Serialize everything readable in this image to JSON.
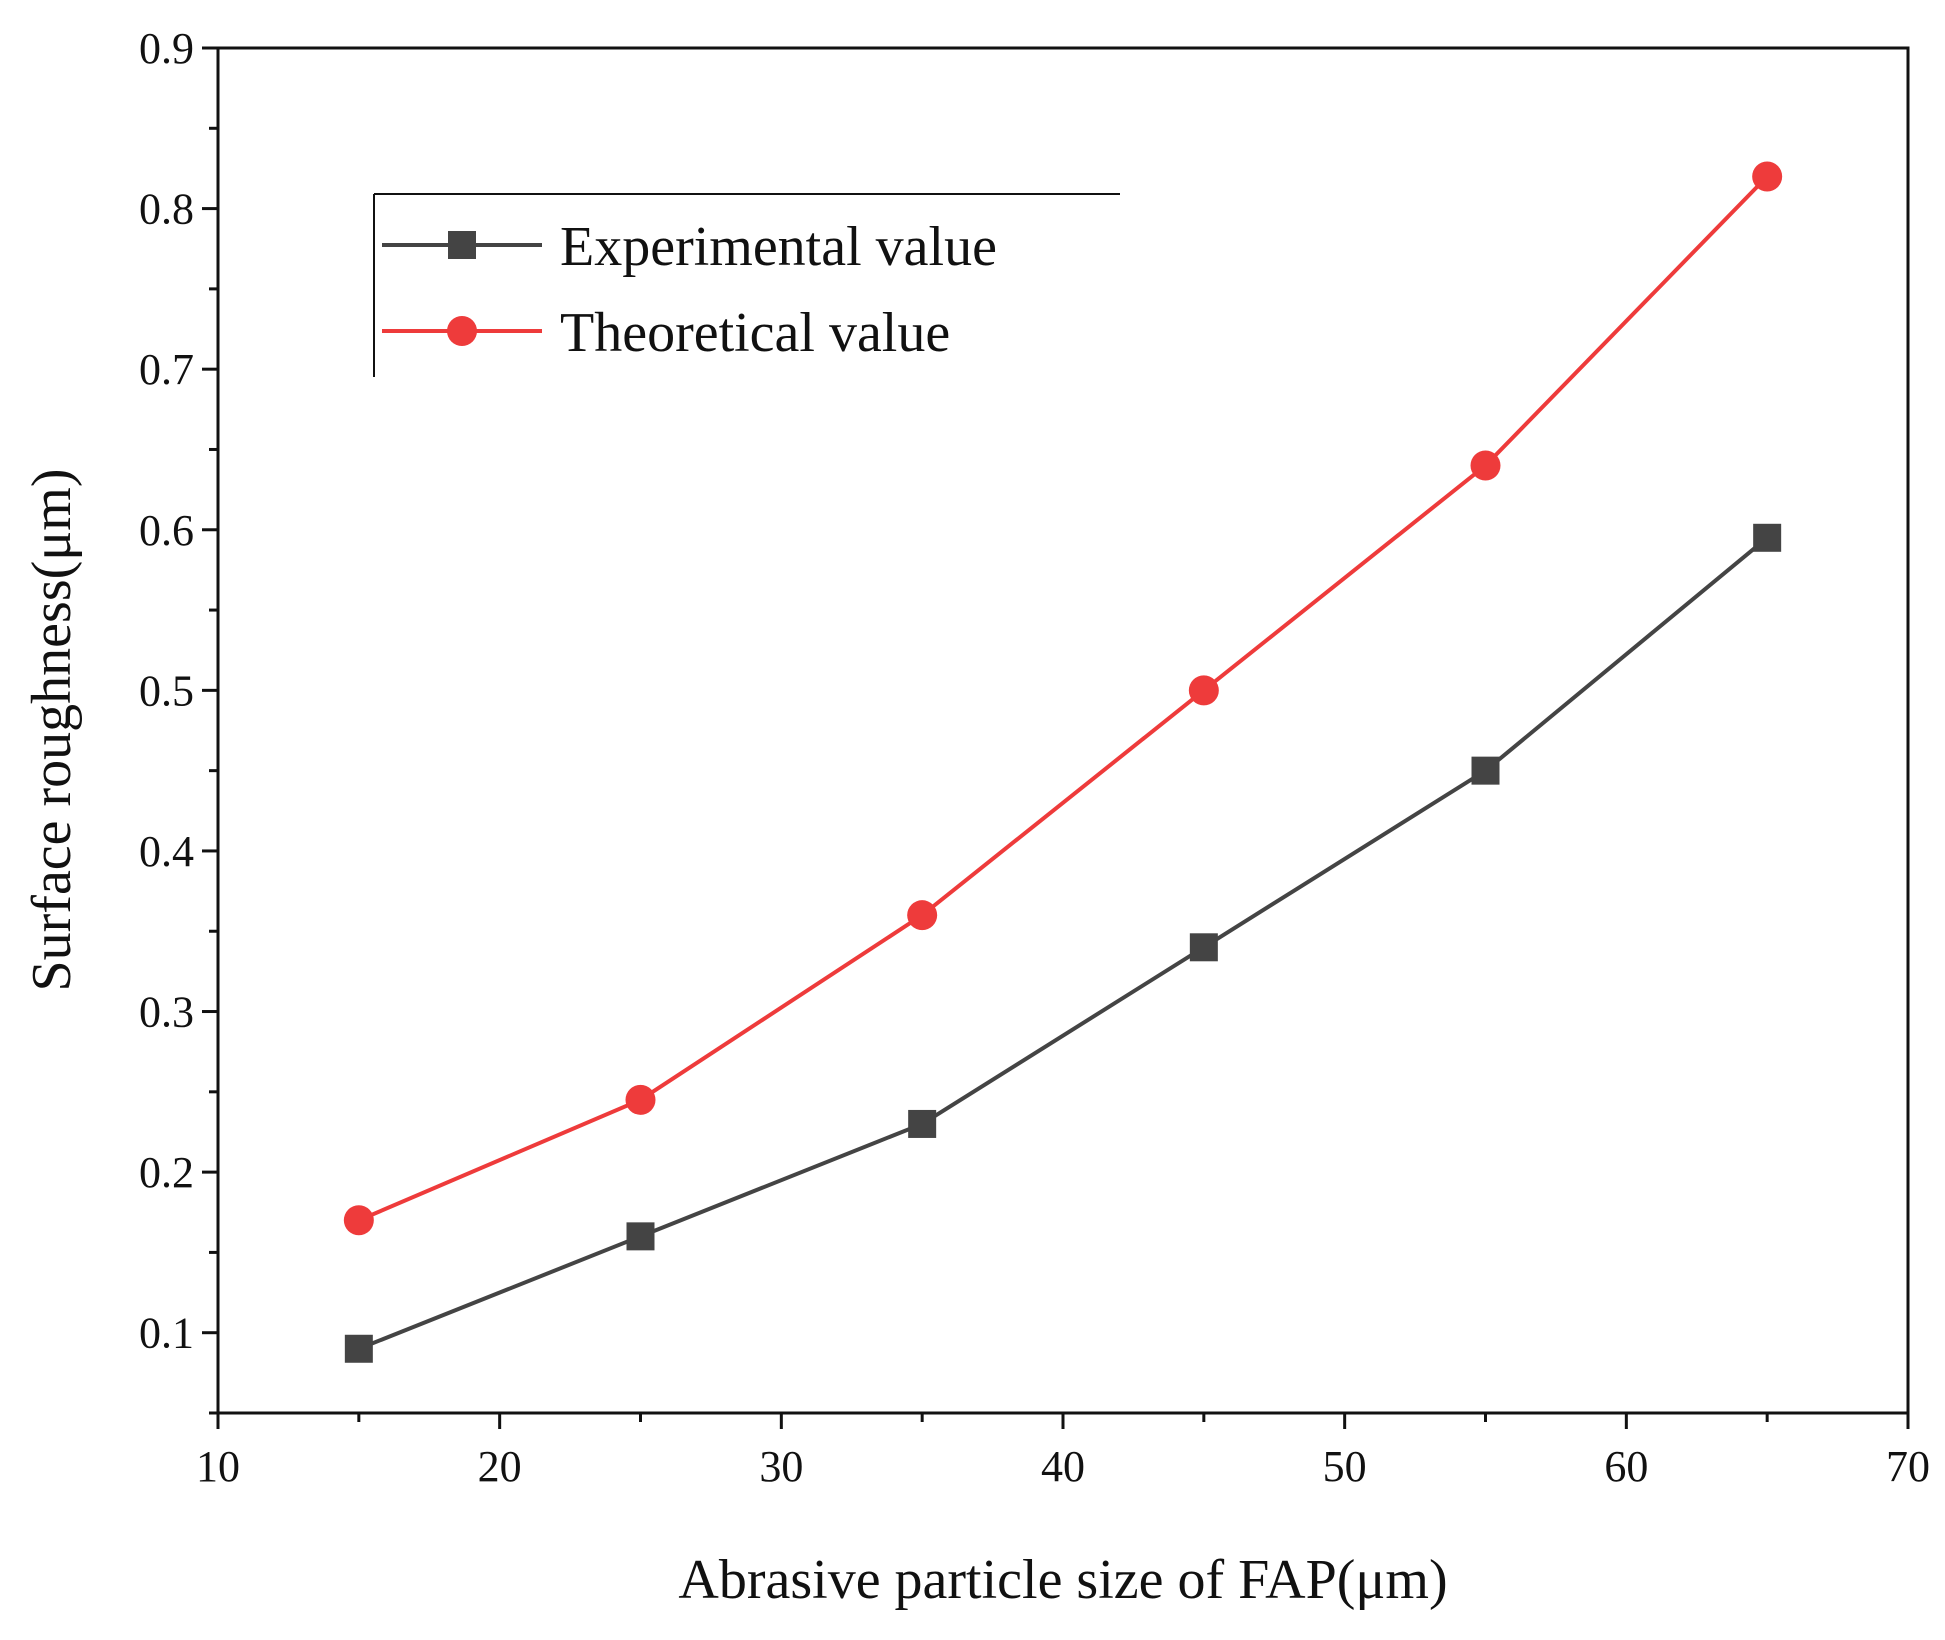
{
  "chart_data": {
    "type": "line",
    "xlabel": "Abrasive particle size of FAP(μm)",
    "ylabel": "Surface roughness(μm)",
    "xlim": [
      10,
      70
    ],
    "ylim": [
      0.05,
      0.9
    ],
    "xticks": [
      10,
      20,
      30,
      40,
      50,
      60,
      70
    ],
    "xtick_labels": [
      "10",
      "20",
      "30",
      "40",
      "50",
      "60",
      "70"
    ],
    "yticks": [
      0.1,
      0.2,
      0.3,
      0.4,
      0.5,
      0.6,
      0.7,
      0.8,
      0.9
    ],
    "ytick_labels": [
      "0.1",
      "0.2",
      "0.3",
      "0.4",
      "0.5",
      "0.6",
      "0.7",
      "0.8",
      "0.9"
    ],
    "grid": false,
    "legend_position": "top-left",
    "x": [
      15,
      25,
      35,
      45,
      55,
      65
    ],
    "series": [
      {
        "name": "Experimental value",
        "values": [
          0.09,
          0.16,
          0.23,
          0.34,
          0.45,
          0.595
        ],
        "color": "#444444",
        "marker": "square"
      },
      {
        "name": "Theoretical value",
        "values": [
          0.17,
          0.245,
          0.36,
          0.5,
          0.64,
          0.82
        ],
        "color": "#ee3b3b",
        "marker": "circle"
      }
    ]
  }
}
